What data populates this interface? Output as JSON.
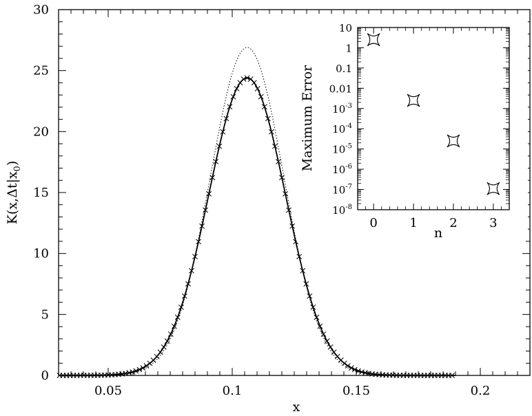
{
  "chart_data": [
    {
      "id": "main",
      "type": "line",
      "xlabel": "x",
      "ylabel": "K(x,Δt|x",
      "ylabel_sub": "0",
      "ylabel_close": ")",
      "xlim": [
        0.03,
        0.22
      ],
      "ylim": [
        0,
        30
      ],
      "xticks": [
        {
          "value": 0.05,
          "label": "0.05"
        },
        {
          "value": 0.1,
          "label": "0.1"
        },
        {
          "value": 0.15,
          "label": "0.15"
        },
        {
          "value": 0.2,
          "label": "0.2"
        }
      ],
      "yticks": [
        {
          "value": 0,
          "label": "0"
        },
        {
          "value": 5,
          "label": "5"
        },
        {
          "value": 10,
          "label": "10"
        },
        {
          "value": 15,
          "label": "15"
        },
        {
          "value": 20,
          "label": "20"
        },
        {
          "value": 25,
          "label": "25"
        },
        {
          "value": 30,
          "label": "30"
        }
      ],
      "grid": false,
      "series": [
        {
          "style": "solid",
          "peak_x": 0.106,
          "peak_y": 24.4,
          "sigma": 0.0155,
          "x_range": [
            0.03,
            0.19
          ]
        },
        {
          "style": "dotted",
          "peak_x": 0.106,
          "peak_y": 26.9,
          "sigma": 0.0148,
          "x_range": [
            0.03,
            0.19
          ]
        },
        {
          "style": "x-markers",
          "peak_x": 0.106,
          "peak_y": 24.4,
          "sigma": 0.0155,
          "x_range": [
            0.03,
            0.19
          ],
          "x_step": 0.0014
        }
      ]
    },
    {
      "id": "inset",
      "type": "scatter",
      "xlabel": "n",
      "ylabel": "Maximum Error",
      "xlim": [
        -0.4,
        3.4
      ],
      "ylim_log10": [
        -8,
        1
      ],
      "xticks": [
        {
          "value": 0,
          "label": "0"
        },
        {
          "value": 1,
          "label": "1"
        },
        {
          "value": 2,
          "label": "2"
        },
        {
          "value": 3,
          "label": "3"
        }
      ],
      "yticks": [
        {
          "exp": 1,
          "label": "10"
        },
        {
          "exp": 0,
          "label": "1"
        },
        {
          "exp": -1,
          "label": "0.1"
        },
        {
          "exp": -2,
          "label": "0.01"
        },
        {
          "exp": -3,
          "base": "10",
          "power": "-3"
        },
        {
          "exp": -4,
          "base": "10",
          "power": "-4"
        },
        {
          "exp": -5,
          "base": "10",
          "power": "-5"
        },
        {
          "exp": -6,
          "base": "10",
          "power": "-6"
        },
        {
          "exp": -7,
          "base": "10",
          "power": "-7"
        },
        {
          "exp": -8,
          "base": "10",
          "power": "-8"
        }
      ],
      "points": [
        {
          "n": 0,
          "error": 2.5
        },
        {
          "n": 1,
          "error": 0.0025
        },
        {
          "n": 2,
          "error": 2.5e-05
        },
        {
          "n": 3,
          "error": 1.1e-07
        }
      ]
    }
  ]
}
